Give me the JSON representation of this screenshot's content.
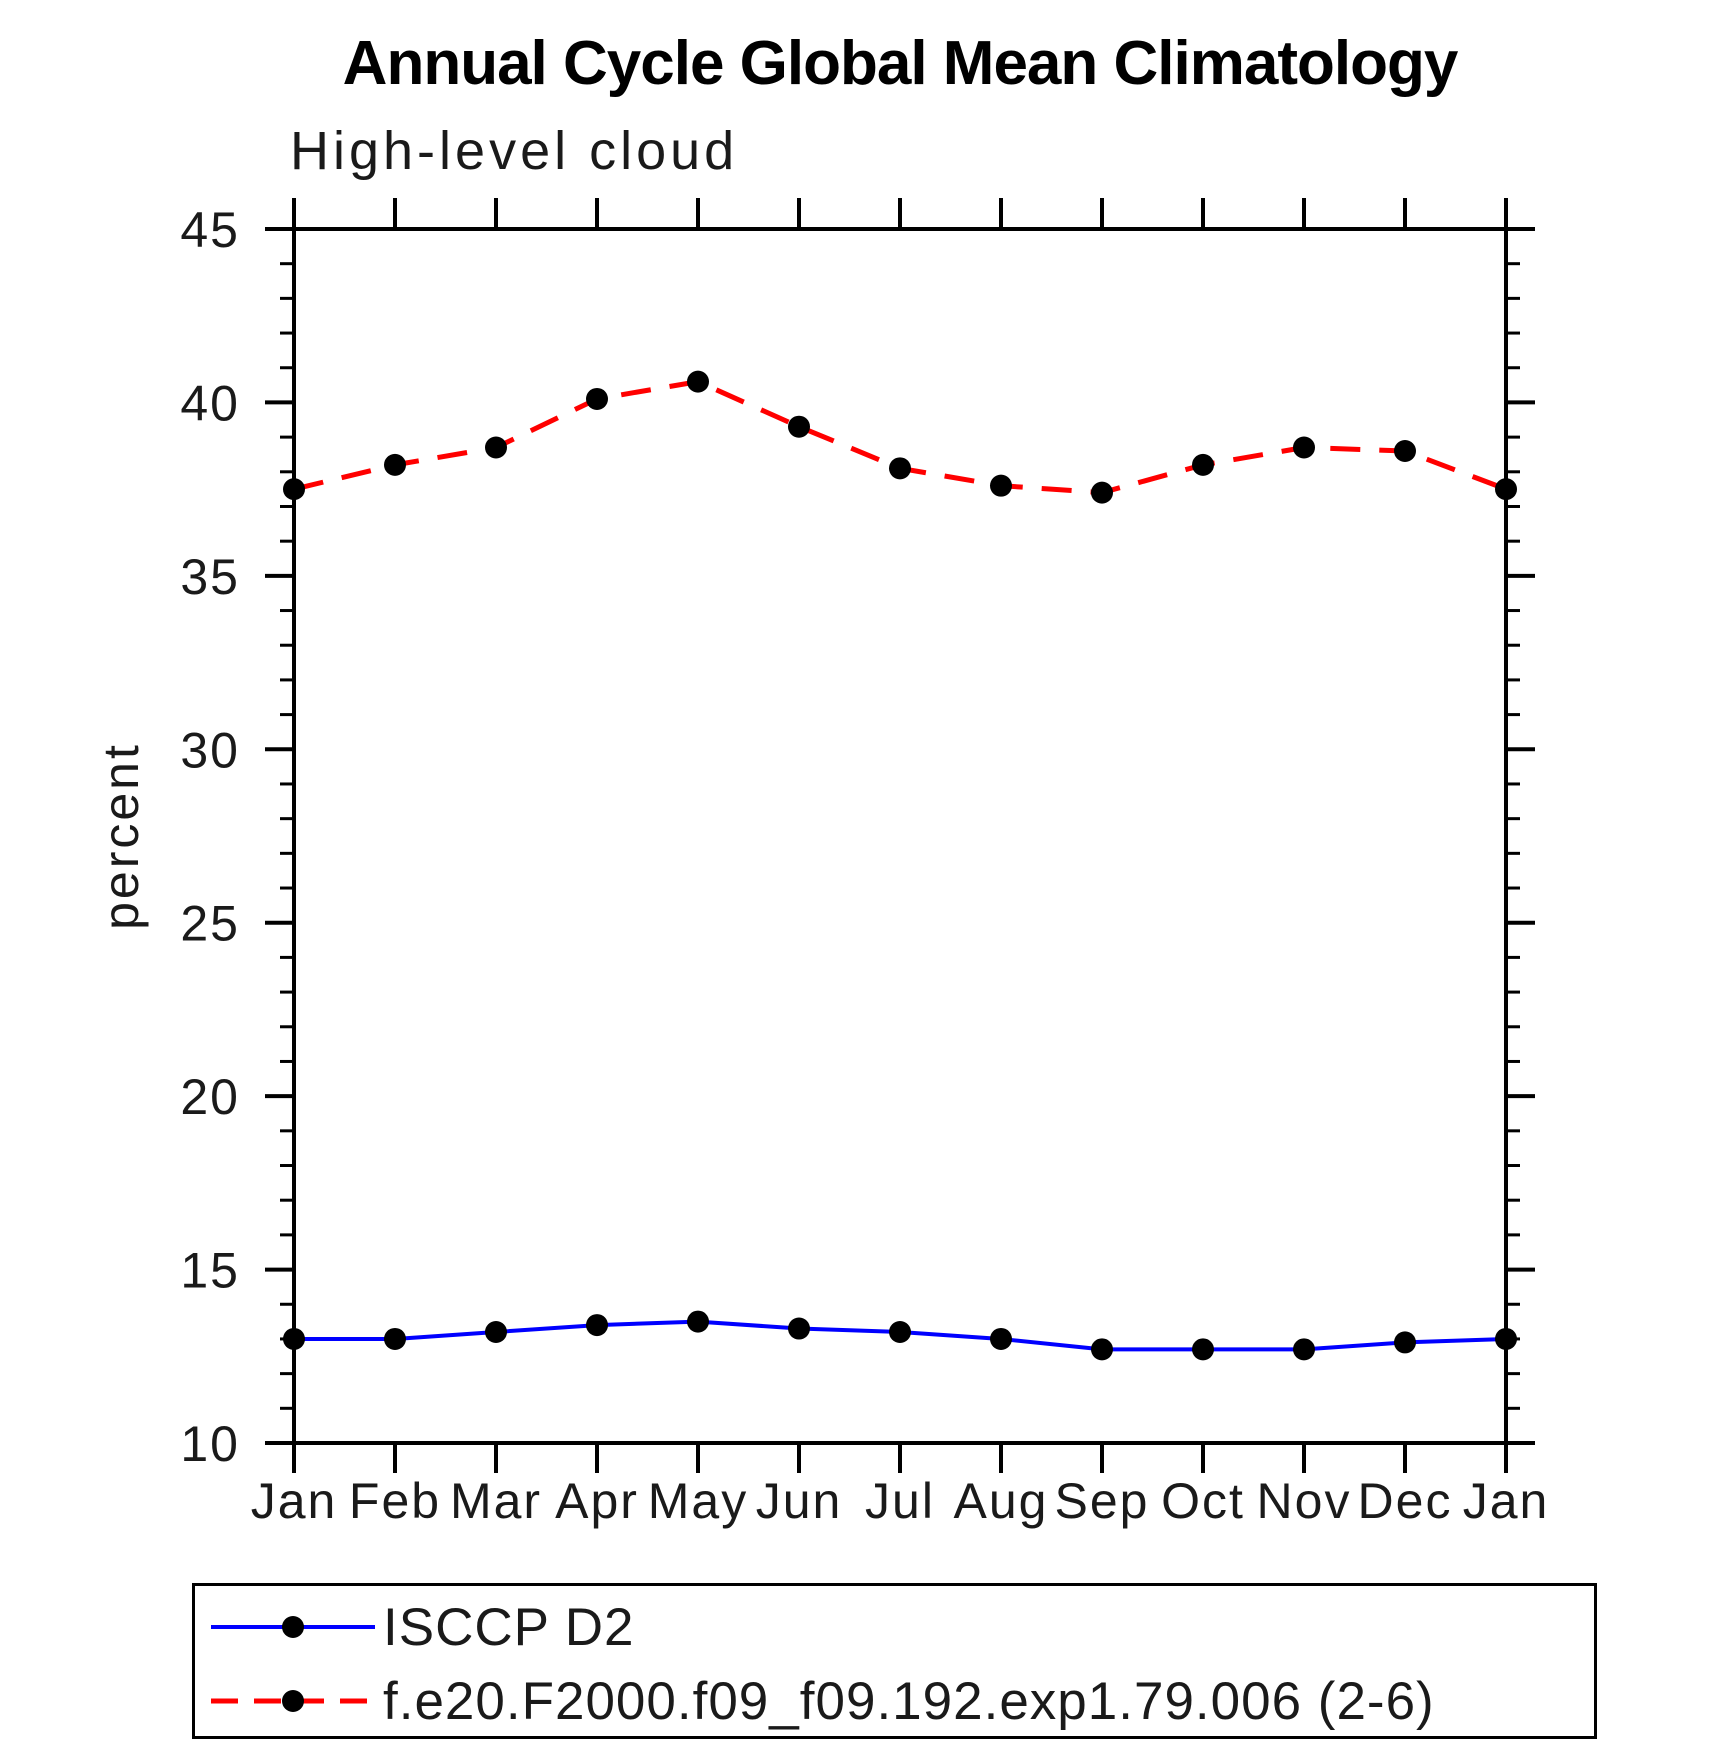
{
  "header": {
    "title": "Annual Cycle Global Mean Climatology",
    "subtitle": "High-level cloud"
  },
  "chart_data": {
    "type": "line",
    "title": "Annual Cycle Global Mean Climatology",
    "subtitle": "High-level cloud",
    "xlabel": "",
    "ylabel": "percent",
    "categories": [
      "Jan",
      "Feb",
      "Mar",
      "Apr",
      "May",
      "Jun",
      "Jul",
      "Aug",
      "Sep",
      "Oct",
      "Nov",
      "Dec",
      "Jan"
    ],
    "ylim": [
      10,
      45
    ],
    "y_major_ticks": [
      10,
      15,
      20,
      25,
      30,
      35,
      40,
      45
    ],
    "y_minor_step": 1,
    "grid": false,
    "legend_position": "bottom",
    "frame_color": "#000000",
    "marker_color": "#000000",
    "series": [
      {
        "name": "ISCCP D2",
        "color": "#0000ff",
        "line_style": "solid",
        "marker": "circle",
        "values": [
          13.0,
          13.0,
          13.2,
          13.4,
          13.5,
          13.3,
          13.2,
          13.0,
          12.7,
          12.7,
          12.7,
          12.9,
          13.0
        ]
      },
      {
        "name": "f.e20.F2000.f09_f09.192.exp1.79.006 (2-6)",
        "color": "#ff0000",
        "line_style": "dashed",
        "marker": "circle",
        "values": [
          37.5,
          38.2,
          38.7,
          40.1,
          40.6,
          39.3,
          38.1,
          37.6,
          37.4,
          38.2,
          38.7,
          38.6,
          37.5
        ]
      }
    ]
  }
}
